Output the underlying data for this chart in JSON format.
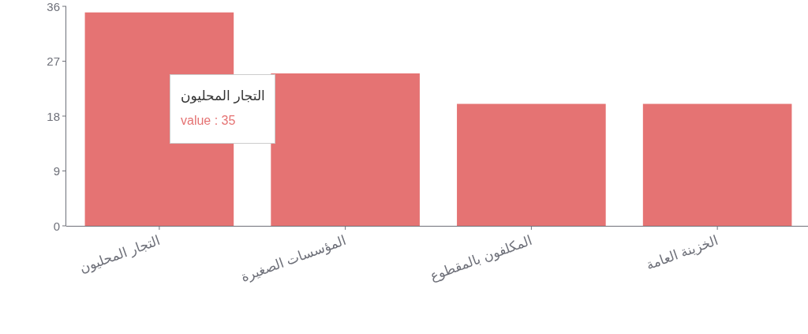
{
  "chart_data": {
    "type": "bar",
    "categories": [
      "التجار المحليون",
      "المؤسسات الصغيرة",
      "المكلفون بالمقطوع",
      "الخزينة العامة"
    ],
    "values": [
      35,
      25,
      20,
      20
    ],
    "color": "#e57373",
    "ylim": [
      0,
      36
    ],
    "yticks": [
      0,
      9,
      18,
      27,
      36
    ],
    "annotations": [
      "التجار المحليون",
      "value : 35"
    ]
  }
}
